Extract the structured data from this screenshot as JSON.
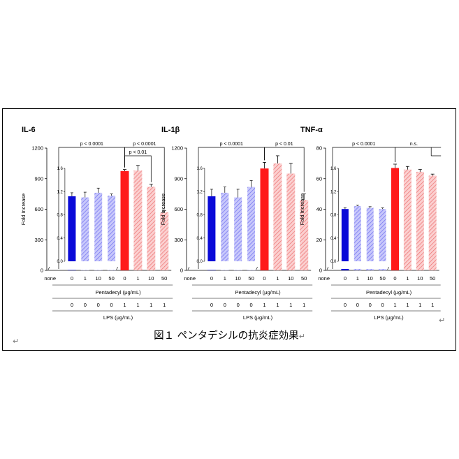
{
  "figure": {
    "caption": "図１ ペンタデシルの抗炎症効果",
    "return_mark": "↵"
  },
  "colors": {
    "blue": "#0a0ad8",
    "blue_hatch": "#9a9af5",
    "red": "#ff1a1a",
    "red_hatch": "#f59a9a"
  },
  "chart_data": [
    {
      "type": "bar",
      "title": "IL-6",
      "ylabel": "Fold Increase",
      "ylim": [
        0,
        1200
      ],
      "yticks": [
        "0",
        "300",
        "600",
        "900",
        "1200"
      ],
      "categories": [
        "none",
        "0",
        "1",
        "10",
        "50",
        "0",
        "1",
        "10",
        "50"
      ],
      "values": [
        0,
        1,
        1,
        1,
        1,
        975,
        980,
        820,
        570
      ],
      "errors": [
        0,
        0,
        0,
        0,
        0,
        15,
        50,
        25,
        15
      ],
      "inset": {
        "ylim": [
          0,
          1.6
        ],
        "yticks": [
          "0.0",
          "0.4",
          "0.8",
          "1.2",
          "1.6"
        ],
        "values": [
          1.12,
          1.1,
          1.18,
          1.13
        ],
        "errors": [
          0.06,
          0.09,
          0.08,
          0.03
        ]
      },
      "annotations": [
        {
          "text": "p < 0.0001",
          "from": 0,
          "to": 5
        },
        {
          "text": "p < 0.0001",
          "from": 5,
          "to": 8
        },
        {
          "text": "p < 0.01",
          "from": 5,
          "to": 7
        }
      ],
      "xgroup_label": "Pentadecyl (μg/mL)",
      "lps_values": [
        "0",
        "0",
        "0",
        "0",
        "1",
        "1",
        "1",
        "1"
      ],
      "lps_label": "LPS (μg/mL)"
    },
    {
      "type": "bar",
      "title": "IL-1β",
      "ylabel": "Fold Increase",
      "ylim": [
        0,
        1200
      ],
      "yticks": [
        "0",
        "300",
        "600",
        "900",
        "1200"
      ],
      "categories": [
        "none",
        "0",
        "1",
        "10",
        "50",
        "0",
        "1",
        "10",
        "50"
      ],
      "values": [
        0,
        1,
        1,
        1,
        1,
        1000,
        1050,
        950,
        690
      ],
      "errors": [
        0,
        0,
        0,
        0,
        0,
        60,
        75,
        100,
        60
      ],
      "inset": {
        "ylim": [
          0,
          1.6
        ],
        "yticks": [
          "0.0",
          "0.4",
          "0.8",
          "1.2",
          "1.6"
        ],
        "values": [
          1.12,
          1.18,
          1.1,
          1.28
        ],
        "errors": [
          0.12,
          0.1,
          0.14,
          0.11
        ]
      },
      "annotations": [
        {
          "text": "p < 0.0001",
          "from": 0,
          "to": 5
        },
        {
          "text": "p < 0.01",
          "from": 5,
          "to": 8
        }
      ],
      "xgroup_label": "Pentadecyl (μg/mL)",
      "lps_values": [
        "0",
        "0",
        "0",
        "0",
        "1",
        "1",
        "1",
        "1"
      ],
      "lps_label": "LPS (μg/mL)"
    },
    {
      "type": "bar",
      "title": "TNF-α",
      "ylabel": "Fold Increase",
      "ylim": [
        0,
        80
      ],
      "yticks": [
        "0",
        "20",
        "40",
        "60",
        "80"
      ],
      "categories": [
        "none",
        "0",
        "1",
        "10",
        "50",
        "0",
        "1",
        "10",
        "50"
      ],
      "values": [
        0,
        0.9,
        0.95,
        0.9,
        0.9,
        67,
        66,
        64.5,
        62
      ],
      "errors": [
        0,
        0,
        0,
        0,
        0,
        2.5,
        2,
        1.5,
        1
      ],
      "inset": {
        "ylim": [
          0,
          1.6
        ],
        "yticks": [
          "0.0",
          "0.4",
          "0.8",
          "1.2",
          "1.6"
        ],
        "values": [
          0.9,
          0.95,
          0.92,
          0.9
        ],
        "errors": [
          0.02,
          0.015,
          0.02,
          0.02
        ]
      },
      "annotations": [
        {
          "text": "p < 0.0001",
          "from": 0,
          "to": 5
        },
        {
          "text": "n.s.",
          "from": 5,
          "to": 8
        }
      ],
      "xgroup_label": "Pentadecyl (μg/mL)",
      "lps_values": [
        "0",
        "0",
        "0",
        "0",
        "1",
        "1",
        "1",
        "1"
      ],
      "lps_label": "LPS (μg/mL)"
    }
  ]
}
